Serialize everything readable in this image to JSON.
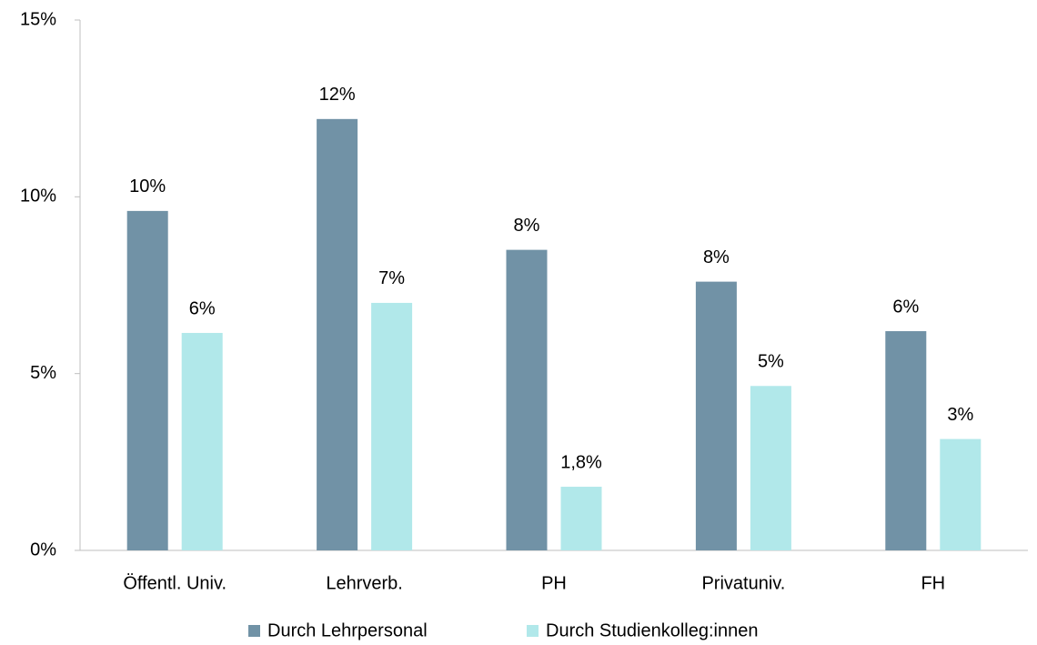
{
  "chart_data": {
    "type": "bar",
    "categories": [
      "Öffentl. Univ.",
      "Lehrverb.",
      "PH",
      "Privatuniv.",
      "FH"
    ],
    "series": [
      {
        "name": "Durch Lehrpersonal",
        "color": "#7192a6",
        "values": [
          9.6,
          12.2,
          8.5,
          7.6,
          6.2
        ],
        "value_labels": [
          "10%",
          "12%",
          "8%",
          "8%",
          "6%"
        ]
      },
      {
        "name": "Durch Studienkolleg:innen",
        "color": "#b1e8ea",
        "values": [
          6.15,
          7.0,
          1.8,
          4.65,
          3.15
        ],
        "value_labels": [
          "6%",
          "7%",
          "1,8%",
          "5%",
          "3%"
        ]
      }
    ],
    "ylim": [
      0,
      15
    ],
    "yticks": [
      {
        "value": 0,
        "label": "0%"
      },
      {
        "value": 5,
        "label": "5%"
      },
      {
        "value": 10,
        "label": "10%"
      },
      {
        "value": 15,
        "label": "15%"
      }
    ],
    "legend": "bottom"
  }
}
